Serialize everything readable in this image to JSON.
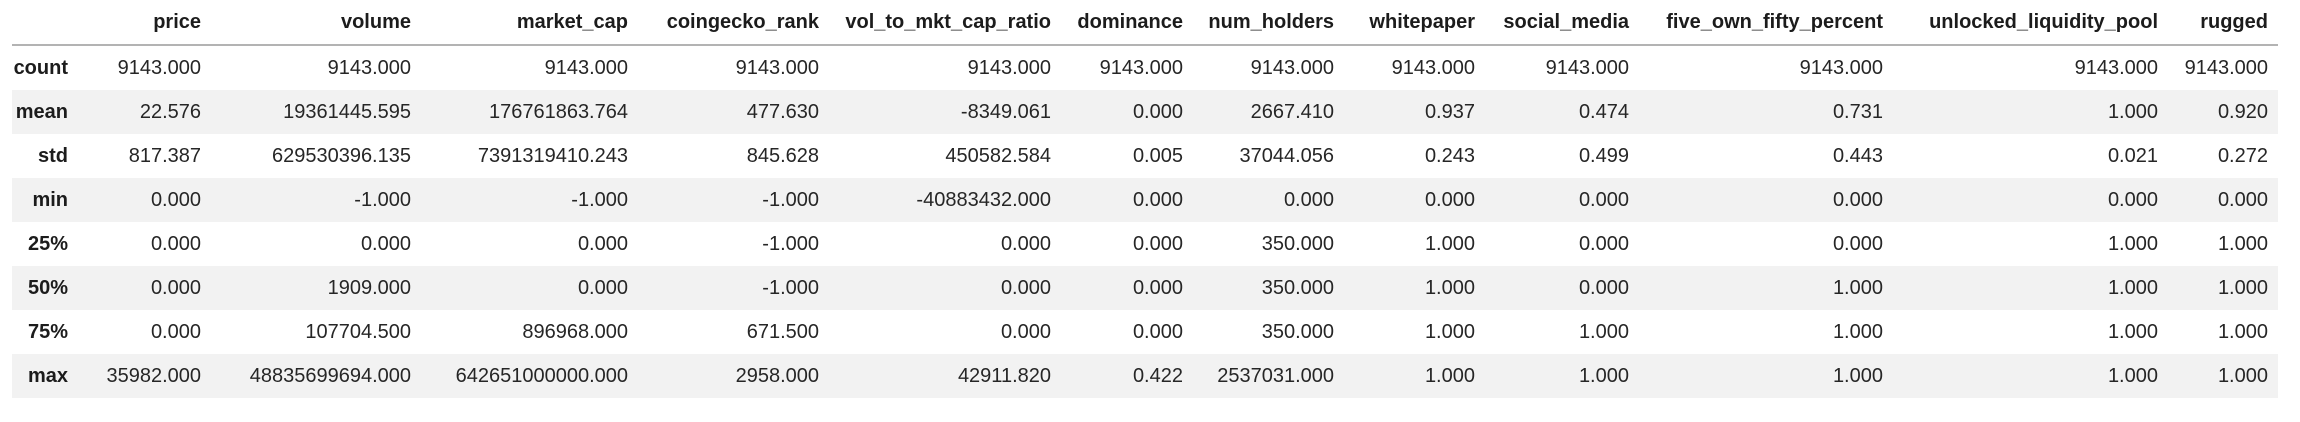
{
  "chart_data": {
    "type": "table",
    "columns": [
      "price",
      "volume",
      "market_cap",
      "coingecko_rank",
      "vol_to_mkt_cap_ratio",
      "dominance",
      "num_holders",
      "whitepaper",
      "social_media",
      "five_own_fifty_percent",
      "unlocked_liquidity_pool",
      "rugged"
    ],
    "rows": [
      {
        "label": "count",
        "values": [
          "9143.000",
          "9143.000",
          "9143.000",
          "9143.000",
          "9143.000",
          "9143.000",
          "9143.000",
          "9143.000",
          "9143.000",
          "9143.000",
          "9143.000",
          "9143.000"
        ]
      },
      {
        "label": "mean",
        "values": [
          "22.576",
          "19361445.595",
          "176761863.764",
          "477.630",
          "-8349.061",
          "0.000",
          "2667.410",
          "0.937",
          "0.474",
          "0.731",
          "1.000",
          "0.920"
        ]
      },
      {
        "label": "std",
        "values": [
          "817.387",
          "629530396.135",
          "7391319410.243",
          "845.628",
          "450582.584",
          "0.005",
          "37044.056",
          "0.243",
          "0.499",
          "0.443",
          "0.021",
          "0.272"
        ]
      },
      {
        "label": "min",
        "values": [
          "0.000",
          "-1.000",
          "-1.000",
          "-1.000",
          "-40883432.000",
          "0.000",
          "0.000",
          "0.000",
          "0.000",
          "0.000",
          "0.000",
          "0.000"
        ]
      },
      {
        "label": "25%",
        "values": [
          "0.000",
          "0.000",
          "0.000",
          "-1.000",
          "0.000",
          "0.000",
          "350.000",
          "1.000",
          "0.000",
          "0.000",
          "1.000",
          "1.000"
        ]
      },
      {
        "label": "50%",
        "values": [
          "0.000",
          "1909.000",
          "0.000",
          "-1.000",
          "0.000",
          "0.000",
          "350.000",
          "1.000",
          "0.000",
          "1.000",
          "1.000",
          "1.000"
        ]
      },
      {
        "label": "75%",
        "values": [
          "0.000",
          "107704.500",
          "896968.000",
          "671.500",
          "0.000",
          "0.000",
          "350.000",
          "1.000",
          "1.000",
          "1.000",
          "1.000",
          "1.000"
        ]
      },
      {
        "label": "max",
        "values": [
          "35982.000",
          "48835699694.000",
          "642651000000.000",
          "2958.000",
          "42911.820",
          "0.422",
          "2537031.000",
          "1.000",
          "1.000",
          "1.000",
          "1.000",
          "1.000"
        ]
      }
    ],
    "layout": {
      "striped": true,
      "header_rule": true,
      "alignment": "right"
    }
  },
  "colors": {
    "background": "#ffffff",
    "stripe": "#f2f2f2",
    "header_border": "#b3b3b3",
    "text": "#262626"
  }
}
